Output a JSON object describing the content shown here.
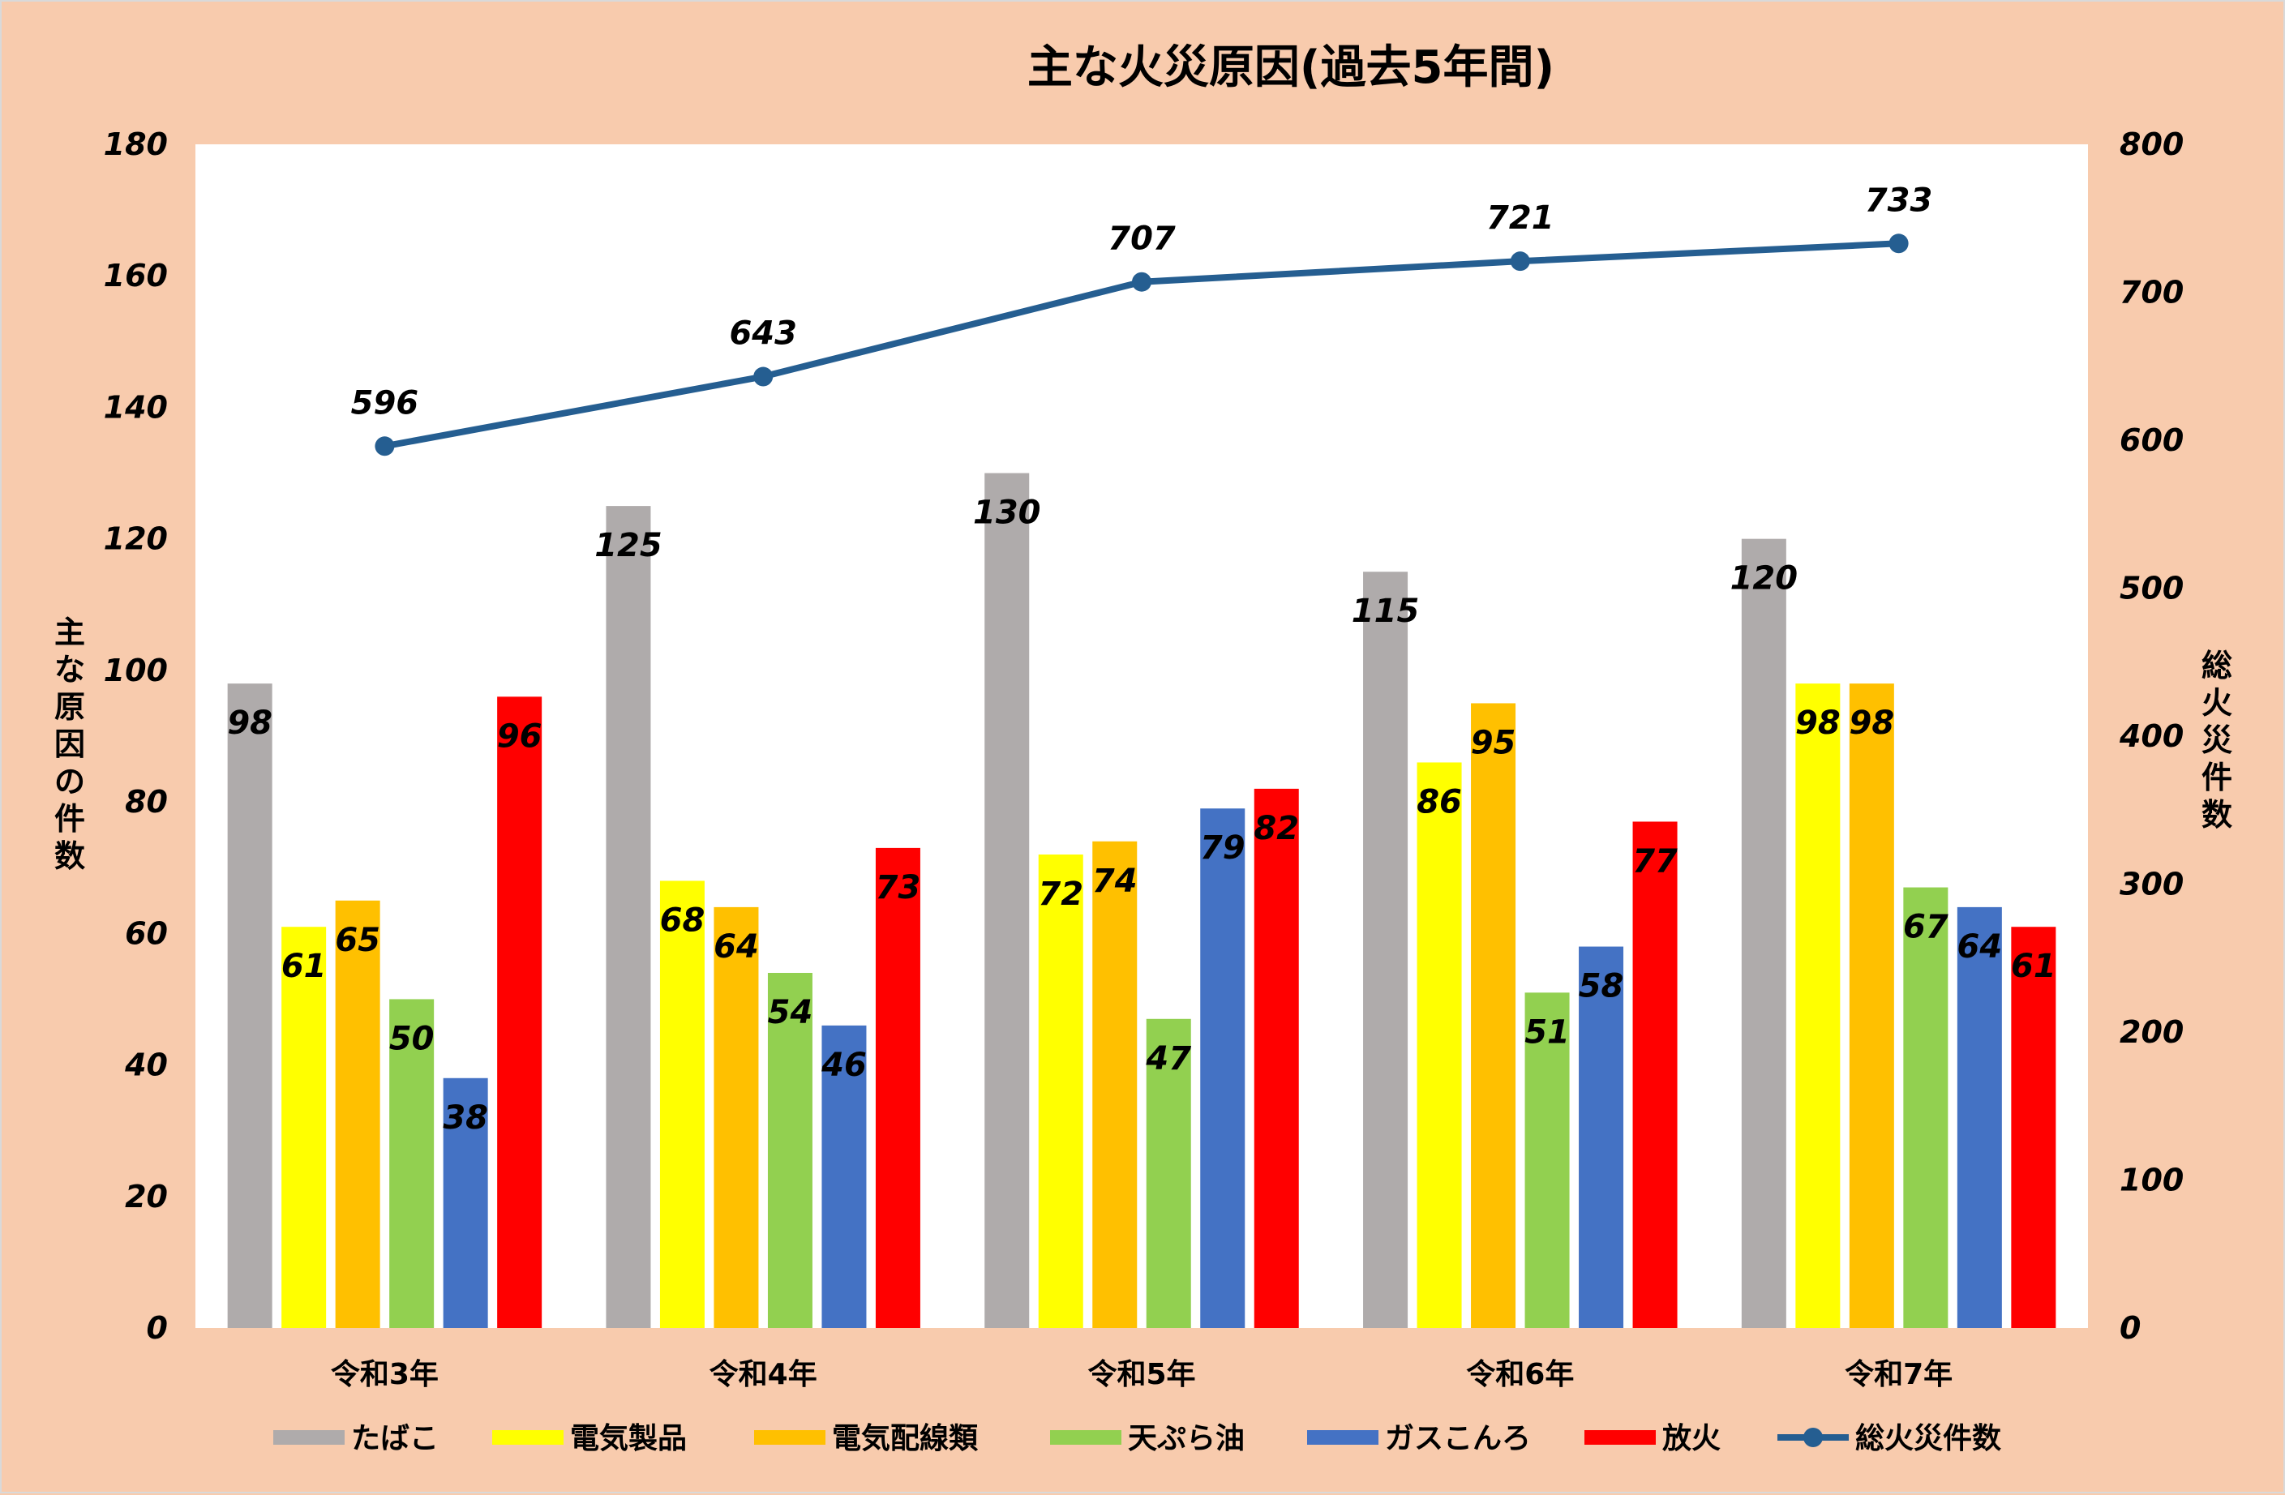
{
  "chart_data": {
    "type": "bar+line",
    "title": "主な火災原因(過去5年間)",
    "categories": [
      "令和3年",
      "令和4年",
      "令和5年",
      "令和6年",
      "令和7年"
    ],
    "y_left": {
      "label": "主な原因の件数",
      "range": [
        0,
        180
      ],
      "ticks": [
        0,
        20,
        40,
        60,
        80,
        100,
        120,
        140,
        160,
        180
      ]
    },
    "y_right": {
      "label": "総火災件数",
      "range": [
        0,
        800
      ],
      "ticks": [
        0,
        100,
        200,
        300,
        400,
        500,
        600,
        700,
        800
      ]
    },
    "grid": false,
    "legend": "bottom",
    "series": [
      {
        "name": "たばこ",
        "type": "bar",
        "axis": "left",
        "color": "#afabab",
        "values": [
          98,
          125,
          130,
          115,
          120
        ]
      },
      {
        "name": "電気製品",
        "type": "bar",
        "axis": "left",
        "color": "#ffff00",
        "values": [
          61,
          68,
          72,
          86,
          98
        ]
      },
      {
        "name": "電気配線類",
        "type": "bar",
        "axis": "left",
        "color": "#ffc000",
        "values": [
          65,
          64,
          74,
          95,
          98
        ]
      },
      {
        "name": "天ぷら油",
        "type": "bar",
        "axis": "left",
        "color": "#92d050",
        "values": [
          50,
          54,
          47,
          51,
          67
        ]
      },
      {
        "name": "ガスこんろ",
        "type": "bar",
        "axis": "left",
        "color": "#4472c4",
        "values": [
          38,
          46,
          79,
          58,
          64
        ]
      },
      {
        "name": "放火",
        "type": "bar",
        "axis": "left",
        "color": "#ff0000",
        "values": [
          96,
          73,
          82,
          77,
          61
        ]
      },
      {
        "name": "総火災件数",
        "type": "line",
        "axis": "right",
        "color": "#255e91",
        "values": [
          596,
          643,
          707,
          721,
          733
        ]
      }
    ]
  }
}
